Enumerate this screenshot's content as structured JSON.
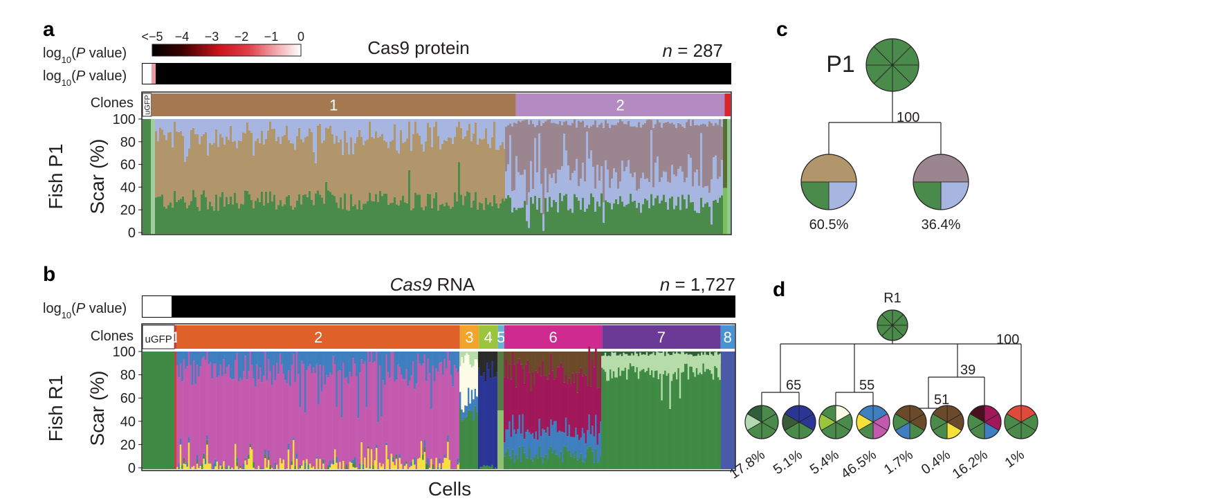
{
  "panels": {
    "a": {
      "letter": "a",
      "title": "Cas9 protein",
      "n_label": "n = 287",
      "pvalue_row_label": "log10(P value)",
      "colorbar_label": "log10(P value)",
      "colorbar_ticks": [
        "<−5",
        "−4",
        "−3",
        "−2",
        "−1",
        "0"
      ],
      "clones_label": "Clones",
      "fish_label": "Fish P1",
      "scar_label": "Scar (%)",
      "y_ticks": [
        "100",
        "80",
        "60",
        "40",
        "20",
        "0"
      ],
      "clones": [
        {
          "label": "uGFP",
          "color": "#ffffff",
          "fraction": 0.015
        },
        {
          "label": "1",
          "color": "#a57a53",
          "fraction": 0.62
        },
        {
          "label": "2",
          "color": "#b48ac2",
          "fraction": 0.355
        },
        {
          "label": "",
          "color": "#d8262c",
          "fraction": 0.01
        }
      ]
    },
    "b": {
      "letter": "b",
      "title_italic": "Cas9",
      "title_rest": " RNA",
      "n_label": "n = 1,727",
      "pvalue_row_label": "log10(P value)",
      "clones_label": "Clones",
      "fish_label": "Fish R1",
      "scar_label": "Scar (%)",
      "x_label": "Cells",
      "y_ticks": [
        "100",
        "80",
        "60",
        "40",
        "20",
        "0"
      ],
      "clones": [
        {
          "label": "uGFP",
          "color": "#ffffff",
          "fraction": 0.054
        },
        {
          "label": "1",
          "color": "#cf3d36",
          "fraction": 0.004
        },
        {
          "label": "2",
          "color": "#e0602a",
          "fraction": 0.478
        },
        {
          "label": "3",
          "color": "#f2a52a",
          "fraction": 0.032
        },
        {
          "label": "4",
          "color": "#9bc53d",
          "fraction": 0.032
        },
        {
          "label": "5",
          "color": "#69b0d6",
          "fraction": 0.011
        },
        {
          "label": "6",
          "color": "#cf2a8f",
          "fraction": 0.165
        },
        {
          "label": "7",
          "color": "#6b3a96",
          "fraction": 0.2
        },
        {
          "label": "8",
          "color": "#4a93d2",
          "fraction": 0.024
        }
      ]
    },
    "c": {
      "letter": "c",
      "root_label": "P1",
      "edge_label": "100",
      "leaves": [
        {
          "percent": "60.5%",
          "slices": [
            "#b0966a",
            "#b0966a",
            "#a7b6e0",
            "#4a8a4a"
          ]
        },
        {
          "percent": "36.4%",
          "slices": [
            "#9b8690",
            "#9b8690",
            "#a7b6e0",
            "#4a8a4a"
          ]
        }
      ]
    },
    "d": {
      "letter": "d",
      "root_label": "R1",
      "edge_labels": [
        "100",
        "65",
        "55",
        "39",
        "51"
      ],
      "leaves": [
        {
          "percent": "17.8%",
          "slices": [
            "#4a8a4a",
            "#4a8a4a",
            "#4a8a4a",
            "#4a8a4a",
            "#b3d9b3",
            "#2e5e3a"
          ]
        },
        {
          "percent": "5.1%",
          "slices": [
            "#2a3595",
            "#2a3595",
            "#4a8a4a",
            "#4a8a4a",
            "#3a5b3a",
            "#2a3595"
          ]
        },
        {
          "percent": "5.4%",
          "slices": [
            "#fbfbe6",
            "#4a8a4a",
            "#4a8a4a",
            "#4a8a4a",
            "#9bc53d",
            "#4a8a4a"
          ]
        },
        {
          "percent": "46.5%",
          "slices": [
            "#3f7fbf",
            "#c45aae",
            "#c45aae",
            "#4a8a4a",
            "#f5e13a",
            "#3f7fbf"
          ]
        },
        {
          "percent": "1.7%",
          "slices": [
            "#6b4a2a",
            "#6b4a2a",
            "#4a8a4a",
            "#3f7fbf",
            "#4a8a4a",
            "#6b4a2a"
          ]
        },
        {
          "percent": "0.4%",
          "slices": [
            "#6b4a2a",
            "#6b4a2a",
            "#f5e13a",
            "#4a8a4a",
            "#4a8a4a",
            "#6b4a2a"
          ]
        },
        {
          "percent": "16.2%",
          "slices": [
            "#a0185a",
            "#a0185a",
            "#3f7fbf",
            "#4a8a4a",
            "#4a8a4a",
            "#4a1020"
          ]
        },
        {
          "percent": "1%",
          "slices": [
            "#e04a3a",
            "#4a8a4a",
            "#4a8a4a",
            "#4a8a4a",
            "#4a8a4a",
            "#e04a3a"
          ]
        }
      ]
    }
  },
  "chart_data": [
    {
      "type": "bar",
      "name": "panel-a",
      "ylabel": "Scar (%)",
      "ylim": [
        0,
        100
      ],
      "y_ticks": [
        0,
        20,
        40,
        60,
        80,
        100
      ],
      "cells": 287,
      "note_series": "stacked scar composition per cell",
      "series": [
        {
          "name": "green",
          "color": "#4a8a4a",
          "clone1_mean": 26,
          "clone2_mean": 25
        },
        {
          "name": "tan",
          "color": "#b0966a",
          "clone1_mean": 54,
          "clone2_mean": 0
        },
        {
          "name": "light-blue",
          "color": "#a7b6e0",
          "clone1_mean": 20,
          "clone2_mean": 23
        },
        {
          "name": "mauve",
          "color": "#9b8690",
          "clone1_mean": 0,
          "clone2_mean": 52
        }
      ]
    },
    {
      "type": "bar",
      "name": "panel-b",
      "ylabel": "Scar (%)",
      "xlabel": "Cells",
      "ylim": [
        0,
        100
      ],
      "y_ticks": [
        0,
        20,
        40,
        60,
        80,
        100
      ],
      "cells": 1727
    }
  ]
}
